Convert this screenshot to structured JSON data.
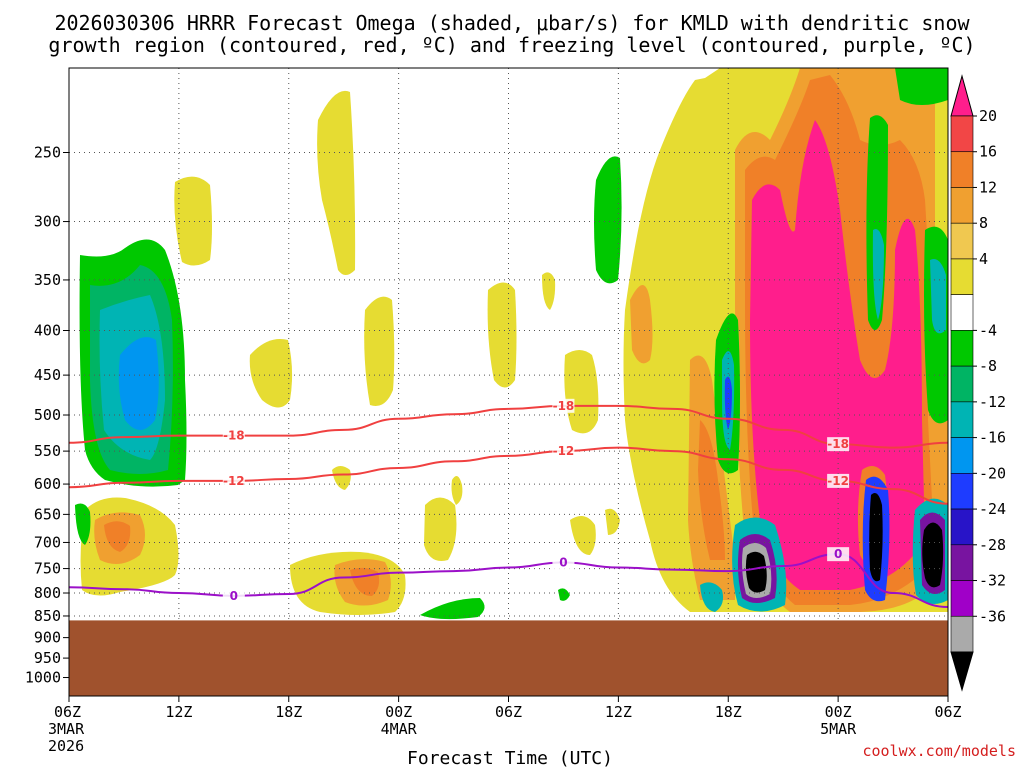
{
  "chart_data": {
    "type": "heatmap",
    "title_lines": [
      "2026030306 HRRR Forecast Omega (shaded, μbar/s) for KMLD with dendritic snow",
      "growth region (contoured, red, ºC) and freezing level (contoured, purple, ºC)"
    ],
    "xlabel": "Forecast Time (UTC)",
    "ylabel": "",
    "credit": "coolwx.com/models",
    "x_range_hours": [
      0,
      48
    ],
    "y_range_hpa": [
      200,
      1050
    ],
    "y_ticks": [
      250,
      300,
      350,
      400,
      450,
      500,
      550,
      600,
      650,
      700,
      750,
      800,
      850,
      900,
      950,
      1000
    ],
    "x_ticks": [
      {
        "hour": 0,
        "label": "06Z",
        "date": "3MAR",
        "year": "2026"
      },
      {
        "hour": 6,
        "label": "12Z"
      },
      {
        "hour": 12,
        "label": "18Z"
      },
      {
        "hour": 18,
        "label": "00Z",
        "date": "4MAR"
      },
      {
        "hour": 24,
        "label": "06Z"
      },
      {
        "hour": 30,
        "label": "12Z"
      },
      {
        "hour": 36,
        "label": "18Z"
      },
      {
        "hour": 42,
        "label": "00Z",
        "date": "5MAR"
      },
      {
        "hour": 48,
        "label": "06Z"
      }
    ],
    "colorbar": {
      "labels": [
        "20",
        "16",
        "12",
        "8",
        "4",
        "-4",
        "-8",
        "-12",
        "-16",
        "-20",
        "-24",
        "-28",
        "-32",
        "-36"
      ],
      "colors": [
        "#ff1e8c",
        "#f24646",
        "#f08028",
        "#f0a030",
        "#f0c850",
        "#e6dc32",
        "#ffffff",
        "#00c800",
        "#00b464",
        "#00b4b4",
        "#0096f0",
        "#1e3cff",
        "#2814c8",
        "#7814a0",
        "#a000c8",
        "#aaaaaa",
        "#000000"
      ]
    },
    "series": [
      {
        "name": "-18C isotherm",
        "label": "-18",
        "color": "#f04040",
        "x": [
          0,
          3,
          6,
          9,
          12,
          15,
          18,
          21,
          24,
          27,
          30,
          33,
          36,
          39,
          42,
          45,
          48
        ],
        "y": [
          538,
          530,
          528,
          528,
          528,
          520,
          505,
          499,
          492,
          488,
          488,
          492,
          505,
          520,
          540,
          545,
          538
        ]
      },
      {
        "name": "-12C isotherm",
        "label": "-12",
        "color": "#f04040",
        "x": [
          0,
          3,
          6,
          9,
          12,
          15,
          18,
          21,
          24,
          27,
          30,
          33,
          36,
          39,
          42,
          45,
          48
        ],
        "y": [
          605,
          598,
          595,
          595,
          592,
          585,
          575,
          565,
          557,
          550,
          545,
          550,
          562,
          578,
          595,
          608,
          632
        ]
      },
      {
        "name": "Freezing level (0C)",
        "label": "0",
        "color": "#9b10c8",
        "x": [
          0,
          3,
          6,
          9,
          12,
          15,
          18,
          21,
          24,
          27,
          30,
          33,
          36,
          39,
          42,
          45,
          48
        ],
        "y": [
          788,
          792,
          800,
          806,
          802,
          768,
          758,
          755,
          748,
          738,
          748,
          752,
          755,
          745,
          722,
          800,
          830
        ]
      }
    ],
    "shaded_regions": [
      {
        "category": "4 to 8",
        "color": "#e6dc32"
      },
      {
        "category": "8 to 12",
        "color": "#f0a030"
      },
      {
        "category": "12 to 16",
        "color": "#f08028"
      },
      {
        "category": ">20",
        "color": "#ff1e8c"
      },
      {
        "category": "-4 to -8",
        "color": "#00c800"
      },
      {
        "category": "-8 to -12",
        "color": "#00b464"
      },
      {
        "category": "-12 to -16",
        "color": "#00b4b4"
      },
      {
        "category": "-16 to -20",
        "color": "#0096f0"
      },
      {
        "category": "< -36",
        "color": "#000000"
      }
    ],
    "terrain_color": "#a0522d",
    "terrain_top_hpa": 860
  }
}
